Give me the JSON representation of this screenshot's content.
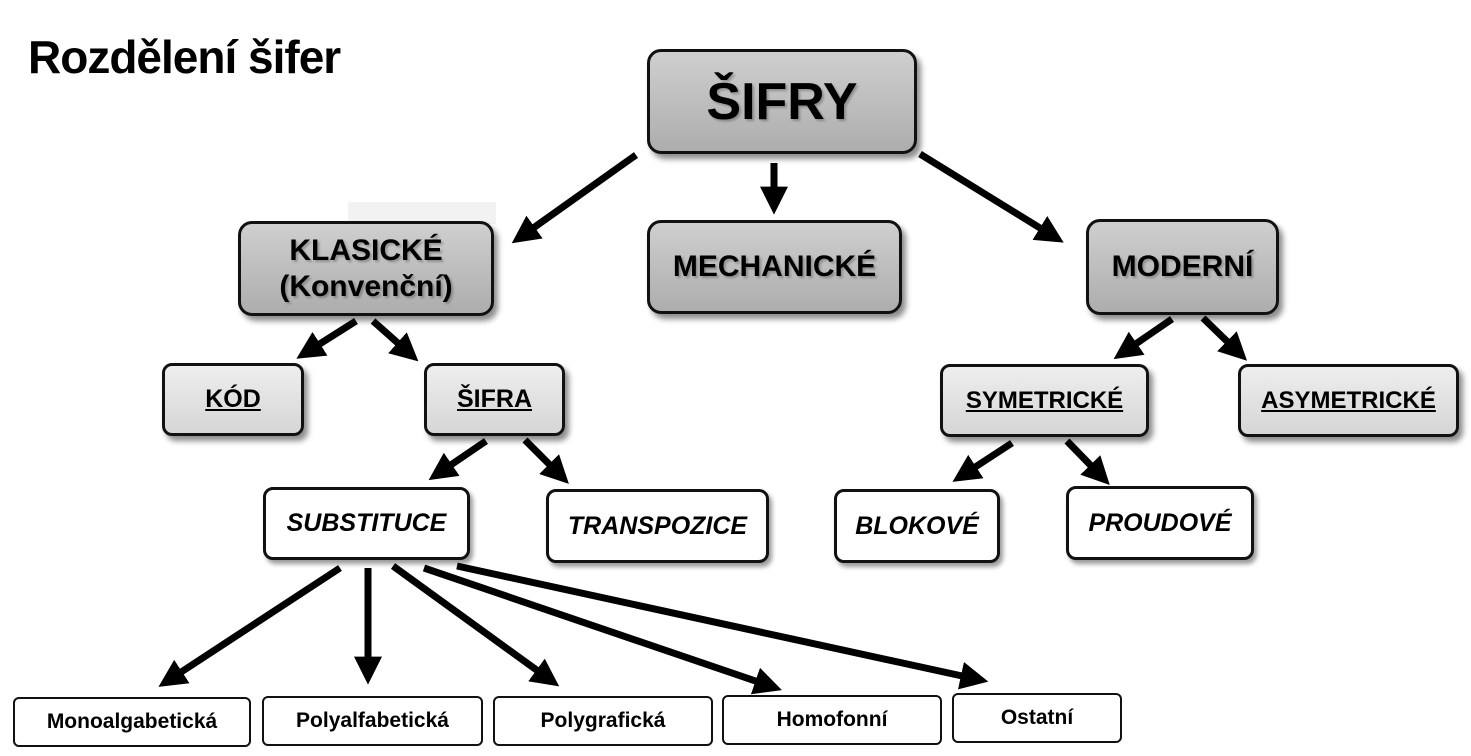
{
  "title": "Rozdělení šifer",
  "nodes": {
    "root": "ŠIFRY",
    "klasicke_line1": "KLASICKÉ",
    "klasicke_line2": "(Konvenční)",
    "mechanicke": "MECHANICKÉ",
    "moderni": "MODERNÍ",
    "kod": "KÓD",
    "sifra": "ŠIFRA",
    "symetricke": "SYMETRICKÉ",
    "asymetricke": "ASYMETRICKÉ",
    "substituce": "SUBSTITUCE",
    "transpozice": "TRANSPOZICE",
    "blokove": "BLOKOVÉ",
    "proudove": "PROUDOVÉ",
    "monoalgabeticka": "Monoalgabetická",
    "polyalfabeticka": "Polyalfabetická",
    "polygraficka": "Polygrafická",
    "homofonni": "Homofonní",
    "ostatni": "Ostatní"
  },
  "colors": {
    "gray_box": "#bdbdbd",
    "light_box": "#e2e2e2",
    "white_box": "#ffffff",
    "stroke": "#000000"
  }
}
